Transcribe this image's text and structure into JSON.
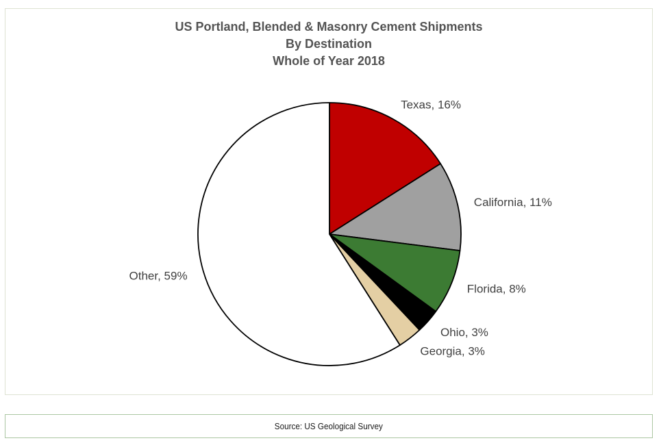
{
  "title": {
    "lines": [
      "US Portland, Blended & Masonry Cement Shipments",
      "By Destination",
      "Whole of Year 2018"
    ]
  },
  "source": {
    "text": "Source: US Geological Survey"
  },
  "colors": {
    "background": "#FFFFFF",
    "main_frame_border": "#DDE2D2",
    "source_frame_border": "#ABC6A2",
    "title_text": "#535353",
    "label_text": "#3F3F3F",
    "slice_outline": "#000000"
  },
  "chart_data": {
    "type": "pie",
    "title": "US Portland, Blended & Masonry Cement Shipments By Destination Whole of Year 2018",
    "start_angle_deg": 0,
    "direction": "clockwise",
    "legend_position": "none",
    "label_format": "{name}, {value}%",
    "slices": [
      {
        "name": "Texas",
        "value": 16,
        "color": "#C00000"
      },
      {
        "name": "California",
        "value": 11,
        "color": "#A0A0A0"
      },
      {
        "name": "Florida",
        "value": 8,
        "color": "#3C7B33"
      },
      {
        "name": "Ohio",
        "value": 3,
        "color": "#000000"
      },
      {
        "name": "Georgia",
        "value": 3,
        "color": "#E4CFA4"
      },
      {
        "name": "Other",
        "value": 59,
        "color": "#FFFFFF"
      }
    ]
  }
}
